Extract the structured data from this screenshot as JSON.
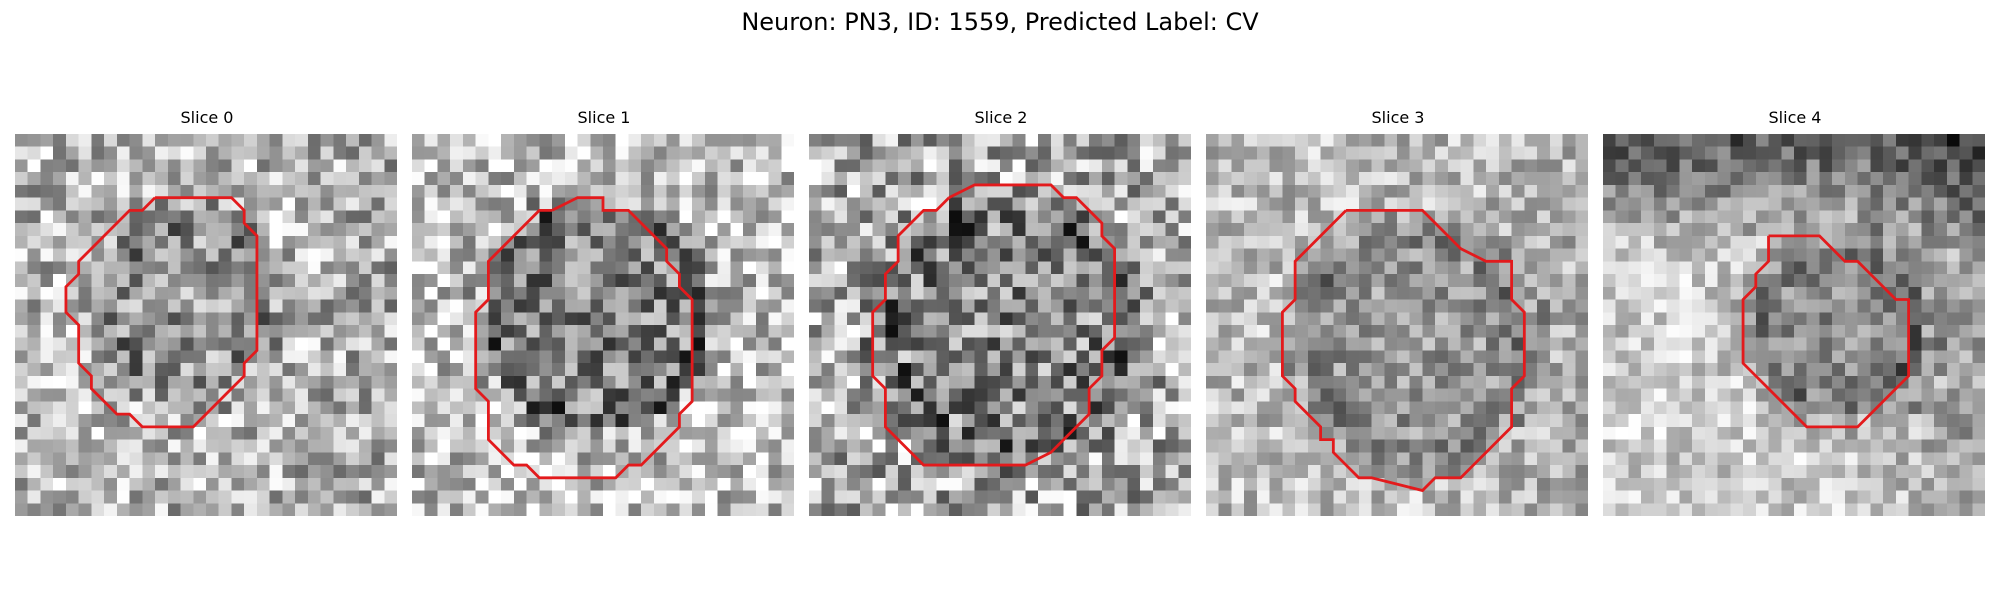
{
  "figure": {
    "suptitle": "Neuron: PN3, ID: 1559, Predicted Label: CV",
    "contour_color": "#e31a1c",
    "colormap": "gray",
    "grid_size": 30
  },
  "panels": [
    {
      "title": "Slice 0"
    },
    {
      "title": "Slice 1"
    },
    {
      "title": "Slice 2"
    },
    {
      "title": "Slice 3"
    },
    {
      "title": "Slice 4"
    }
  ]
}
